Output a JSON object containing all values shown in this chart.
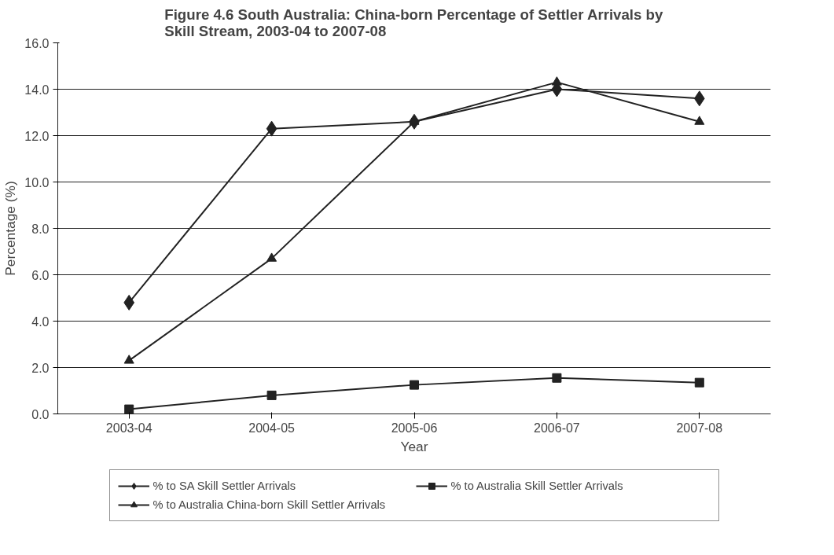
{
  "chart_data": {
    "type": "line",
    "title": "Figure 4.6 South Australia: China-born Percentage of Settler Arrivals by\nSkill Stream, 2003-04 to 2007-08",
    "xlabel": "Year",
    "ylabel": "Percentage (%)",
    "categories": [
      "2003-04",
      "2004-05",
      "2005-06",
      "2006-07",
      "2007-08"
    ],
    "series": [
      {
        "name": "% to SA Skill Settler Arrivals",
        "color": "#222222",
        "marker": "diamond",
        "values": [
          4.8,
          12.3,
          12.6,
          14.0,
          13.6
        ]
      },
      {
        "name": "% to Australia Skill Settler Arrivals",
        "color": "#222222",
        "marker": "square",
        "values": [
          0.2,
          0.8,
          1.25,
          1.55,
          1.35
        ]
      },
      {
        "name": "% to Australia China-born Skill Settler Arrivals",
        "color": "#222222",
        "marker": "triangle",
        "values": [
          2.3,
          6.7,
          12.6,
          14.3,
          12.6
        ]
      }
    ],
    "ylim": [
      0,
      16
    ],
    "yticks": [
      {
        "value": 0,
        "label": "0.0"
      },
      {
        "value": 2,
        "label": "2.0"
      },
      {
        "value": 4,
        "label": "4.0"
      },
      {
        "value": 6,
        "label": "6.0"
      },
      {
        "value": 8,
        "label": "8.0"
      },
      {
        "value": 10,
        "label": "10.0"
      },
      {
        "value": 12,
        "label": "12.0"
      },
      {
        "value": 14,
        "label": "14.0"
      },
      {
        "value": 16,
        "label": "16.0"
      }
    ],
    "grid": "y",
    "legend": "bottom",
    "line_style": "solid"
  }
}
